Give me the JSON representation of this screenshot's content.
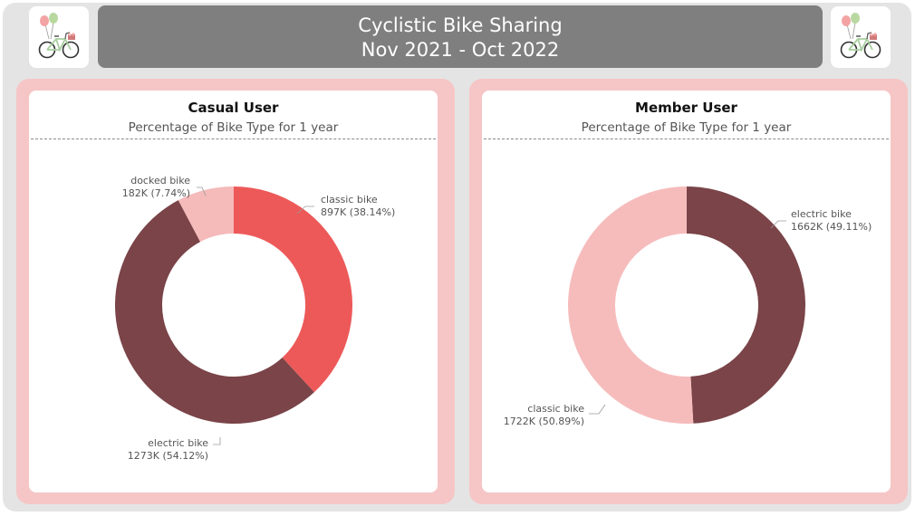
{
  "header": {
    "title": "Cyclistic Bike Sharing",
    "period": "Nov 2021 - Oct 2022"
  },
  "logos": [
    {
      "icon": "bicycle-with-balloons-icon"
    },
    {
      "icon": "bicycle-with-balloons-icon"
    }
  ],
  "colors": {
    "classic_casual": "#ed5959",
    "electric": "#7a4448",
    "docked": "#f5baba",
    "classic_member": "#f6bcbc",
    "panel_bg": "#f6c6c6",
    "header_bg": "#7f7f7f"
  },
  "chart_data": [
    {
      "type": "pie",
      "donut": true,
      "title": "Casual User",
      "subtitle": "Percentage of Bike Type for 1 year",
      "slices": [
        {
          "label": "classic bike",
          "value": 897,
          "value_text": "897K",
          "percent": 38.14,
          "percent_text": "38.14%",
          "color": "#ed5959"
        },
        {
          "label": "electric bike",
          "value": 1273,
          "value_text": "1273K",
          "percent": 54.12,
          "percent_text": "54.12%",
          "color": "#7a4448"
        },
        {
          "label": "docked bike",
          "value": 182,
          "value_text": "182K",
          "percent": 7.74,
          "percent_text": "7.74%",
          "color": "#f5baba"
        }
      ]
    },
    {
      "type": "pie",
      "donut": true,
      "title": "Member User",
      "subtitle": "Percentage of Bike Type for 1 year",
      "slices": [
        {
          "label": "electric bike",
          "value": 1662,
          "value_text": "1662K",
          "percent": 49.11,
          "percent_text": "49.11%",
          "color": "#7a4448"
        },
        {
          "label": "classic bike",
          "value": 1722,
          "value_text": "1722K",
          "percent": 50.89,
          "percent_text": "50.89%",
          "color": "#f6bcbc"
        }
      ]
    }
  ]
}
